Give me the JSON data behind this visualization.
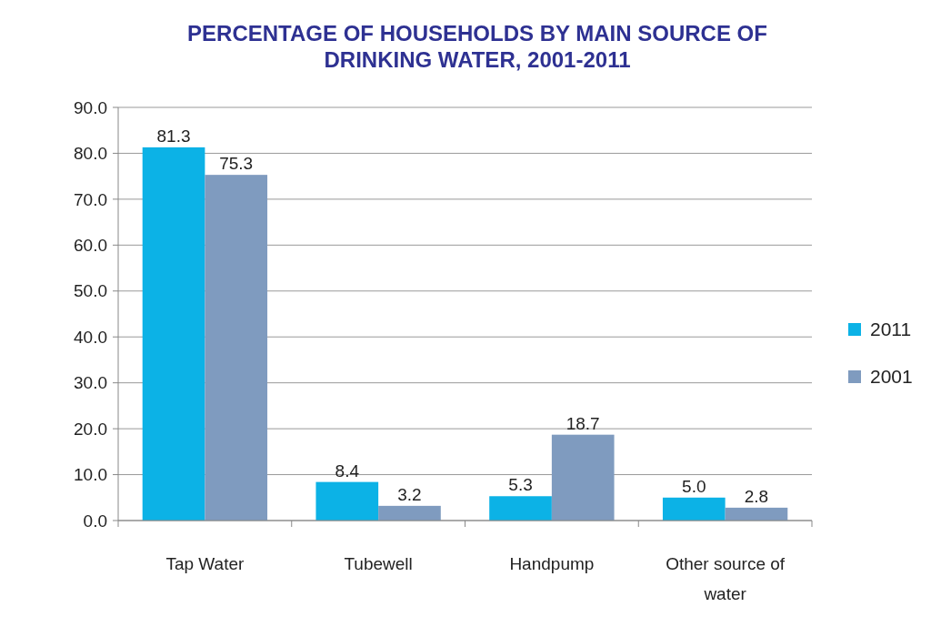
{
  "chart_data": {
    "type": "bar",
    "title": "PERCENTAGE OF HOUSEHOLDS BY MAIN SOURCE OF DRINKING WATER, 2001-2011",
    "categories": [
      "Tap Water",
      "Tubewell",
      "Handpump",
      "Other source of water"
    ],
    "series": [
      {
        "name": "2011",
        "color": "#0cb2e6",
        "values": [
          81.3,
          8.4,
          5.3,
          5.0
        ],
        "value_labels": [
          "81.3",
          "8.4",
          "5.3",
          "5.0"
        ]
      },
      {
        "name": "2001",
        "color": "#7f9bbf",
        "values": [
          75.3,
          3.2,
          18.7,
          2.8
        ],
        "value_labels": [
          "75.3",
          "3.2",
          "18.7",
          "2.8"
        ]
      }
    ],
    "ylim": [
      0,
      90
    ],
    "yticks": [
      {
        "value": 0,
        "label": "0.0"
      },
      {
        "value": 10,
        "label": "10.0"
      },
      {
        "value": 20,
        "label": "20.0"
      },
      {
        "value": 30,
        "label": "30.0"
      },
      {
        "value": 40,
        "label": "40.0"
      },
      {
        "value": 50,
        "label": "50.0"
      },
      {
        "value": 60,
        "label": "60.0"
      },
      {
        "value": 70,
        "label": "70.0"
      },
      {
        "value": 80,
        "label": "80.0"
      },
      {
        "value": 90,
        "label": "90.0"
      }
    ],
    "grid": "y",
    "legend": "right"
  }
}
